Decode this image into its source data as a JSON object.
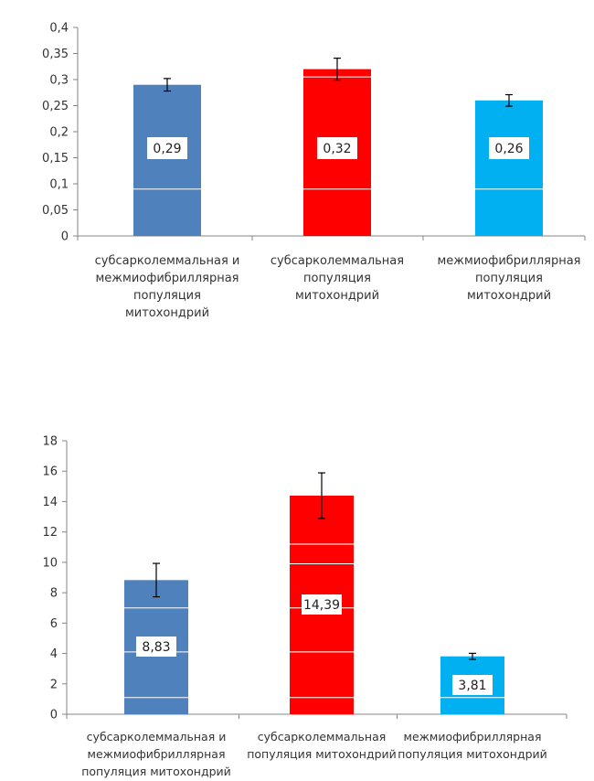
{
  "chart_data": [
    {
      "type": "bar",
      "categories": [
        [
          "субсарколеммальная и",
          "межмиофибриллярная",
          "популяция",
          "митохондрий"
        ],
        [
          "субсарколеммальная",
          "популяция",
          "митохондрий"
        ],
        [
          "межмиофибриллярная",
          "популяция",
          "митохондрий"
        ]
      ],
      "values": [
        0.29,
        0.32,
        0.26
      ],
      "errors": [
        0.012,
        0.021,
        0.011
      ],
      "data_labels": [
        "0,29",
        "0,32",
        "0,26"
      ],
      "colors": [
        "#4f81bd",
        "#ff0000",
        "#00b0f0"
      ],
      "ylim": [
        0,
        0.4
      ],
      "yticks": [
        0,
        0.05,
        0.1,
        0.15,
        0.2,
        0.25,
        0.3,
        0.35,
        0.4
      ],
      "ytick_labels": [
        "0",
        "0,05",
        "0,1",
        "0,15",
        "0,2",
        "0,25",
        "0,3",
        "0,35",
        "0,4"
      ],
      "grid": false
    },
    {
      "type": "bar",
      "categories": [
        [
          "субсарколеммальная и",
          "межмиофибриллярная",
          "популяция митохондрий"
        ],
        [
          "субсарколеммальная",
          "популяция митохондрий"
        ],
        [
          "межмиофибриллярная",
          "популяция митохондрий"
        ]
      ],
      "values": [
        8.83,
        14.39,
        3.81
      ],
      "errors": [
        1.1,
        1.5,
        0.2
      ],
      "data_labels": [
        "8,83",
        "14,39",
        "3,81"
      ],
      "colors": [
        "#4f81bd",
        "#ff0000",
        "#00b0f0"
      ],
      "ylim": [
        0,
        18
      ],
      "yticks": [
        0,
        2,
        4,
        6,
        8,
        10,
        12,
        14,
        16,
        18
      ],
      "ytick_labels": [
        "0",
        "2",
        "4",
        "6",
        "8",
        "10",
        "12",
        "14",
        "16",
        "18"
      ],
      "grid": false
    }
  ]
}
